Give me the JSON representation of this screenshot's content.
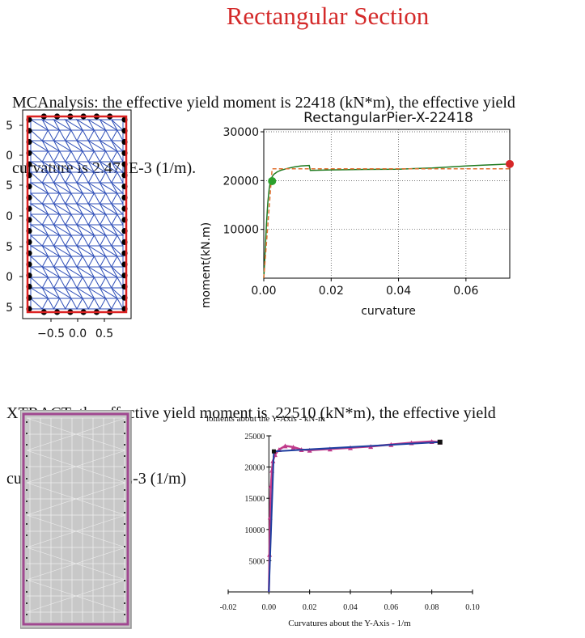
{
  "heading": "Rectangular Section",
  "mca_text": {
    "line1": "MCAnalysis: the effective yield moment is 22418 (kN*m), the effective yield",
    "line2": "curvature is 2.471E-3 (1/m)."
  },
  "xtract_text": {
    "line1": "XTRACT: the effective yield moment is  22510 (kN*m), the effective yield",
    "line2": "curvature is 2.426E-3 (1/m)"
  },
  "mesh_plot": {
    "y_tick_labels": [
      "5",
      "0",
      "5",
      "0",
      "5",
      "0",
      "5"
    ],
    "x_tick_labels": [
      "−0.5",
      "0.0",
      "0.5"
    ],
    "colors": {
      "mesh": "#2f4fb8",
      "boundary": "#dd2222",
      "rebar": "#000000"
    }
  },
  "mca_chart": {
    "chart_data": {
      "type": "line",
      "title": "RectangularPier-X-22418",
      "xlabel": "curvature",
      "ylabel": "moment(kN.m)",
      "xlim": [
        0,
        0.073
      ],
      "ylim": [
        0,
        30500
      ],
      "x_ticks": [
        "0.00",
        "0.02",
        "0.04",
        "0.06"
      ],
      "y_ticks": [
        "10000",
        "20000",
        "30000"
      ],
      "grid": true,
      "series": [
        {
          "style": "solid",
          "color": "#1f7a1f",
          "x": [
            0,
            0.0004,
            0.0008,
            0.0012,
            0.0016,
            0.002,
            0.0025,
            0.003,
            0.004,
            0.005,
            0.007,
            0.009,
            0.011,
            0.0135,
            0.0138,
            0.02,
            0.03,
            0.04,
            0.05,
            0.06,
            0.065,
            0.07,
            0.073
          ],
          "y": [
            0,
            5500,
            11000,
            15500,
            18300,
            19900,
            20800,
            21300,
            21800,
            22100,
            22500,
            22800,
            23000,
            23100,
            22100,
            22200,
            22300,
            22350,
            22600,
            23000,
            23150,
            23300,
            23400
          ]
        },
        {
          "style": "dashed",
          "color": "#e07030",
          "x": [
            0,
            0.00247,
            0.073
          ],
          "y": [
            0,
            22418,
            22418
          ]
        }
      ],
      "markers": [
        {
          "x": 0.00247,
          "y": 19900,
          "color": "#2ca02c"
        },
        {
          "x": 0.073,
          "y": 23400,
          "color": "#d62728"
        }
      ]
    }
  },
  "section_image": {
    "colors": {
      "fill": "#c8c8c8",
      "grid": "#eeeeee",
      "border": "#a04890",
      "outer": "#909090"
    }
  },
  "xtract_chart": {
    "chart_data": {
      "type": "line",
      "title": "loments about the Y-Axis - kN-m",
      "xlabel": "Curvatures about the Y-Axis - 1/m",
      "ylabel": "",
      "xlim": [
        -0.02,
        0.1
      ],
      "ylim": [
        0,
        25000
      ],
      "x_ticks": [
        "-0.02",
        "0.00",
        "0.02",
        "0.04",
        "0.06",
        "0.08",
        "0.10"
      ],
      "y_ticks": [
        "5000",
        "10000",
        "15000",
        "20000",
        "25000"
      ],
      "grid": false,
      "series": [
        {
          "style": "solid",
          "color": "#c03a8a",
          "x": [
            0,
            0.0003,
            0.0006,
            0.001,
            0.0015,
            0.002,
            0.003,
            0.005,
            0.008,
            0.012,
            0.016,
            0.02,
            0.03,
            0.04,
            0.05,
            0.06,
            0.07,
            0.08,
            0.084
          ],
          "y": [
            0,
            6000,
            12000,
            17000,
            19500,
            21000,
            22000,
            22800,
            23400,
            23200,
            22800,
            22700,
            22900,
            23100,
            23300,
            23600,
            23900,
            24100,
            24000
          ]
        },
        {
          "style": "solid",
          "color": "#1f3fa0",
          "x": [
            0,
            0.00243,
            0.084
          ],
          "y": [
            0,
            22510,
            24000
          ]
        }
      ]
    }
  }
}
